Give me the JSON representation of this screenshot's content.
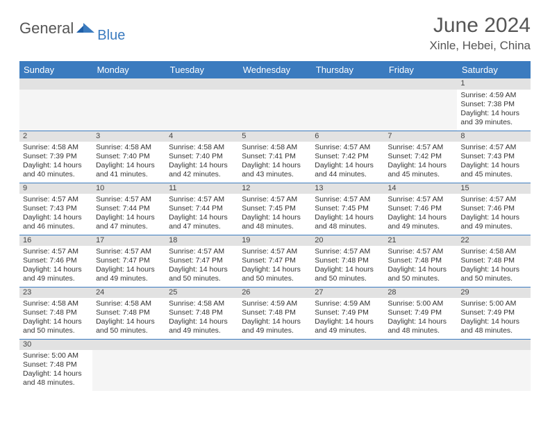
{
  "brand": {
    "name": "General",
    "sub": "Blue",
    "accent": "#3b7bbf"
  },
  "title": "June 2024",
  "location": "Xinle, Hebei, China",
  "colors": {
    "header_bg": "#3b7bbf",
    "header_fg": "#ffffff",
    "daynum_bg": "#e2e2e2",
    "divider": "#3b7bbf",
    "text": "#333333",
    "title_color": "#555555"
  },
  "typography": {
    "month_title_fontsize": 30,
    "location_fontsize": 17,
    "weekday_fontsize": 13,
    "daynum_fontsize": 11,
    "cell_fontsize": 10.5
  },
  "weekdays": [
    "Sunday",
    "Monday",
    "Tuesday",
    "Wednesday",
    "Thursday",
    "Friday",
    "Saturday"
  ],
  "weeks": [
    [
      null,
      null,
      null,
      null,
      null,
      null,
      {
        "d": "1",
        "sr": "4:59 AM",
        "ss": "7:38 PM",
        "dl": "14 hours and 39 minutes."
      }
    ],
    [
      {
        "d": "2",
        "sr": "4:58 AM",
        "ss": "7:39 PM",
        "dl": "14 hours and 40 minutes."
      },
      {
        "d": "3",
        "sr": "4:58 AM",
        "ss": "7:40 PM",
        "dl": "14 hours and 41 minutes."
      },
      {
        "d": "4",
        "sr": "4:58 AM",
        "ss": "7:40 PM",
        "dl": "14 hours and 42 minutes."
      },
      {
        "d": "5",
        "sr": "4:58 AM",
        "ss": "7:41 PM",
        "dl": "14 hours and 43 minutes."
      },
      {
        "d": "6",
        "sr": "4:57 AM",
        "ss": "7:42 PM",
        "dl": "14 hours and 44 minutes."
      },
      {
        "d": "7",
        "sr": "4:57 AM",
        "ss": "7:42 PM",
        "dl": "14 hours and 45 minutes."
      },
      {
        "d": "8",
        "sr": "4:57 AM",
        "ss": "7:43 PM",
        "dl": "14 hours and 45 minutes."
      }
    ],
    [
      {
        "d": "9",
        "sr": "4:57 AM",
        "ss": "7:43 PM",
        "dl": "14 hours and 46 minutes."
      },
      {
        "d": "10",
        "sr": "4:57 AM",
        "ss": "7:44 PM",
        "dl": "14 hours and 47 minutes."
      },
      {
        "d": "11",
        "sr": "4:57 AM",
        "ss": "7:44 PM",
        "dl": "14 hours and 47 minutes."
      },
      {
        "d": "12",
        "sr": "4:57 AM",
        "ss": "7:45 PM",
        "dl": "14 hours and 48 minutes."
      },
      {
        "d": "13",
        "sr": "4:57 AM",
        "ss": "7:45 PM",
        "dl": "14 hours and 48 minutes."
      },
      {
        "d": "14",
        "sr": "4:57 AM",
        "ss": "7:46 PM",
        "dl": "14 hours and 49 minutes."
      },
      {
        "d": "15",
        "sr": "4:57 AM",
        "ss": "7:46 PM",
        "dl": "14 hours and 49 minutes."
      }
    ],
    [
      {
        "d": "16",
        "sr": "4:57 AM",
        "ss": "7:46 PM",
        "dl": "14 hours and 49 minutes."
      },
      {
        "d": "17",
        "sr": "4:57 AM",
        "ss": "7:47 PM",
        "dl": "14 hours and 49 minutes."
      },
      {
        "d": "18",
        "sr": "4:57 AM",
        "ss": "7:47 PM",
        "dl": "14 hours and 50 minutes."
      },
      {
        "d": "19",
        "sr": "4:57 AM",
        "ss": "7:47 PM",
        "dl": "14 hours and 50 minutes."
      },
      {
        "d": "20",
        "sr": "4:57 AM",
        "ss": "7:48 PM",
        "dl": "14 hours and 50 minutes."
      },
      {
        "d": "21",
        "sr": "4:57 AM",
        "ss": "7:48 PM",
        "dl": "14 hours and 50 minutes."
      },
      {
        "d": "22",
        "sr": "4:58 AM",
        "ss": "7:48 PM",
        "dl": "14 hours and 50 minutes."
      }
    ],
    [
      {
        "d": "23",
        "sr": "4:58 AM",
        "ss": "7:48 PM",
        "dl": "14 hours and 50 minutes."
      },
      {
        "d": "24",
        "sr": "4:58 AM",
        "ss": "7:48 PM",
        "dl": "14 hours and 50 minutes."
      },
      {
        "d": "25",
        "sr": "4:58 AM",
        "ss": "7:48 PM",
        "dl": "14 hours and 49 minutes."
      },
      {
        "d": "26",
        "sr": "4:59 AM",
        "ss": "7:48 PM",
        "dl": "14 hours and 49 minutes."
      },
      {
        "d": "27",
        "sr": "4:59 AM",
        "ss": "7:49 PM",
        "dl": "14 hours and 49 minutes."
      },
      {
        "d": "28",
        "sr": "5:00 AM",
        "ss": "7:49 PM",
        "dl": "14 hours and 48 minutes."
      },
      {
        "d": "29",
        "sr": "5:00 AM",
        "ss": "7:49 PM",
        "dl": "14 hours and 48 minutes."
      }
    ],
    [
      {
        "d": "30",
        "sr": "5:00 AM",
        "ss": "7:48 PM",
        "dl": "14 hours and 48 minutes."
      },
      null,
      null,
      null,
      null,
      null,
      null
    ]
  ],
  "labels": {
    "sunrise": "Sunrise:",
    "sunset": "Sunset:",
    "daylight": "Daylight:"
  }
}
